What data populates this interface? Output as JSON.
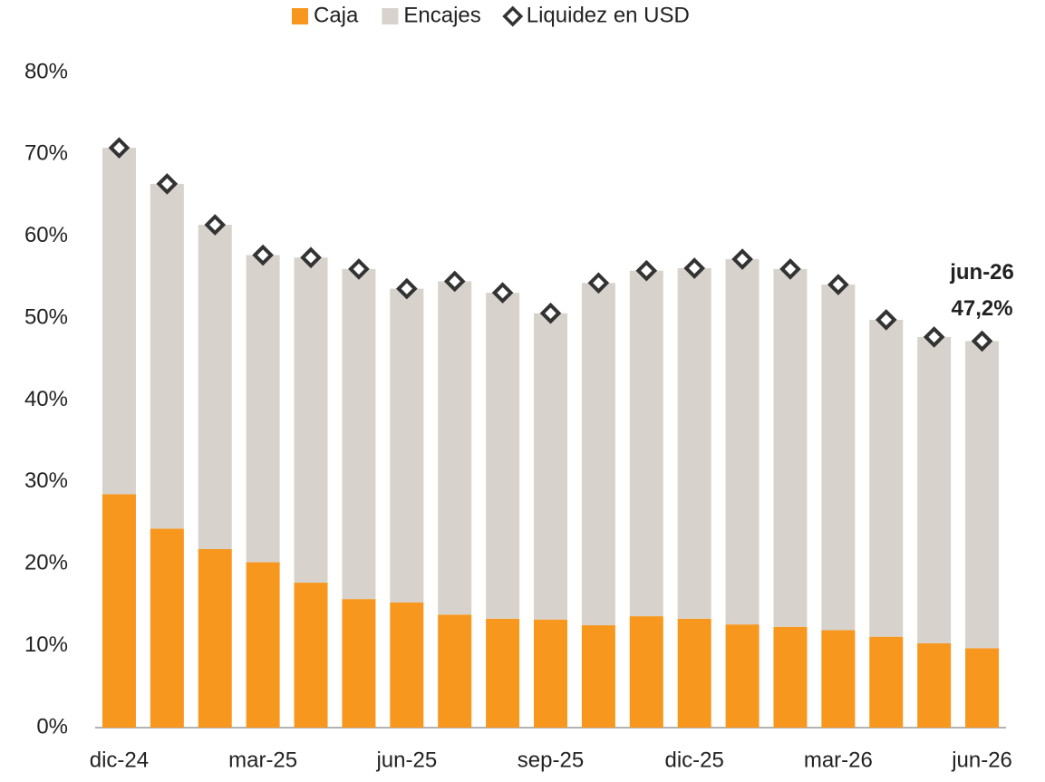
{
  "chart_data": {
    "type": "bar",
    "stacked": true,
    "categories": [
      "dic-24",
      null,
      null,
      "mar-25",
      null,
      null,
      "jun-25",
      null,
      null,
      "sep-25",
      null,
      null,
      "dic-25",
      null,
      null,
      "mar-26",
      null,
      null,
      "jun-26"
    ],
    "series": [
      {
        "name": "Caja",
        "color": "#f7971d",
        "values": [
          28.5,
          24.3,
          21.8,
          20.2,
          17.7,
          15.7,
          15.3,
          13.8,
          13.3,
          13.2,
          12.5,
          13.6,
          13.3,
          12.6,
          12.3,
          11.9,
          11.1,
          10.3,
          9.7
        ]
      },
      {
        "name": "Encajes",
        "color": "#d7d2cc",
        "values": [
          42.3,
          42.1,
          39.6,
          37.5,
          39.7,
          40.3,
          38.3,
          40.7,
          39.8,
          37.4,
          41.8,
          42.2,
          42.8,
          44.6,
          43.7,
          42.2,
          38.7,
          37.4,
          37.5
        ]
      },
      {
        "name": "Liquidez en USD",
        "type": "marker",
        "color": "#333333",
        "values": [
          70.8,
          66.4,
          61.4,
          57.7,
          57.4,
          56.0,
          53.6,
          54.5,
          53.1,
          50.6,
          54.3,
          55.8,
          56.1,
          57.2,
          56.0,
          54.1,
          49.8,
          47.7,
          47.2
        ],
        "value_labels": [
          null,
          null,
          null,
          null,
          null,
          null,
          null,
          null,
          null,
          null,
          null,
          null,
          null,
          null,
          null,
          null,
          null,
          null,
          "47,2%"
        ]
      }
    ],
    "annotation": "jun-26",
    "ylim": [
      0,
      80
    ],
    "yticks": [
      {
        "value": 0,
        "label": "0%"
      },
      {
        "value": 10,
        "label": "10%"
      },
      {
        "value": 20,
        "label": "20%"
      },
      {
        "value": 30,
        "label": "30%"
      },
      {
        "value": 40,
        "label": "40%"
      },
      {
        "value": 50,
        "label": "50%"
      },
      {
        "value": 60,
        "label": "60%"
      },
      {
        "value": 70,
        "label": "70%"
      },
      {
        "value": 80,
        "label": "80%"
      }
    ],
    "grid": false,
    "legend": "top"
  }
}
